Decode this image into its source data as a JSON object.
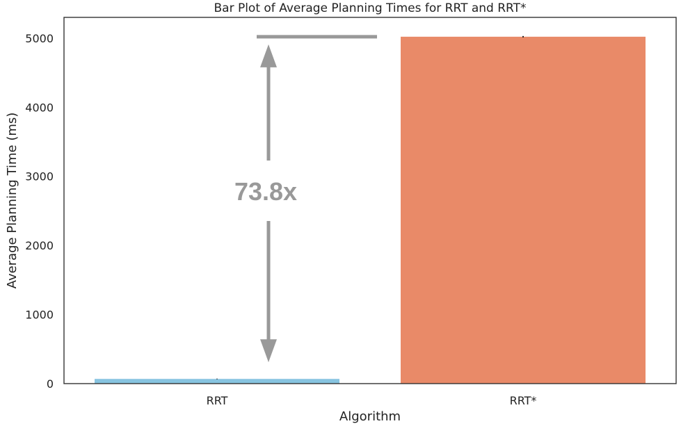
{
  "chart_data": {
    "type": "bar",
    "title": "Bar Plot of Average Planning Times for RRT and RRT*",
    "xlabel": "Algorithm",
    "ylabel": "Average Planning Time (ms)",
    "categories": [
      "RRT",
      "RRT*"
    ],
    "values": [
      68,
      5020
    ],
    "errors": [
      4,
      10
    ],
    "ylim": [
      0,
      5300
    ],
    "yticks": [
      0,
      1000,
      2000,
      3000,
      4000,
      5000
    ],
    "grid": false,
    "legend": "none",
    "colors": [
      "#87c4e0",
      "#e98a68"
    ],
    "annotation": {
      "text": "73.8x",
      "color": "#999999"
    }
  }
}
